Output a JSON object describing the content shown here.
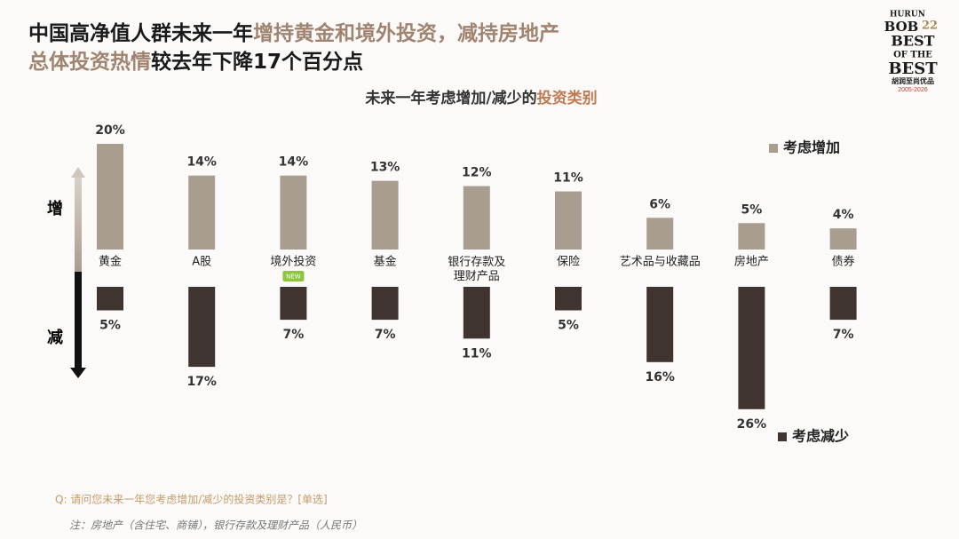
{
  "header": {
    "title_lines": [
      [
        {
          "text": "中国高净值人群未来一年",
          "color": "#1a1a1a"
        },
        {
          "text": "增持黄金和境外投资，减持房地产",
          "color": "#a08470"
        }
      ],
      [
        {
          "text": "总体投资热情",
          "color": "#a08470"
        },
        {
          "text": "较去年下降17个百分点",
          "color": "#1a1a1a"
        }
      ]
    ],
    "logo": {
      "brand": "HURUN",
      "event": "BOB",
      "edition": "22",
      "lines": [
        "BEST",
        "OF THE",
        "BEST"
      ],
      "name": "胡润至尚优品",
      "years": "2005-2026"
    }
  },
  "chart_data": {
    "type": "bar",
    "title": [
      {
        "text": "未来一年考虑增加/减少的",
        "color": "#333333"
      },
      {
        "text": "投资类别",
        "color": "#c07a52"
      }
    ],
    "axis_labels": {
      "increase": "增",
      "decrease": "减"
    },
    "categories": [
      "黄金",
      "A股",
      "境外投资",
      "基金",
      "银行存款及理财产品",
      "保险",
      "艺术品与收藏品",
      "房地产",
      "债券"
    ],
    "series": [
      {
        "name": "考虑增加",
        "color": "#a99d90",
        "values": [
          20,
          14,
          14,
          13,
          12,
          11,
          6,
          5,
          4
        ],
        "value_labels": [
          "20%",
          "14%",
          "14%",
          "13%",
          "12%",
          "11%",
          "6%",
          "5%",
          "4%"
        ]
      },
      {
        "name": "考虑减少",
        "color": "#3f3430",
        "values": [
          5,
          17,
          7,
          7,
          11,
          5,
          16,
          26,
          7
        ],
        "value_labels": [
          "5%",
          "17%",
          "7%",
          "7%",
          "11%",
          "5%",
          "16%",
          "26%",
          "7%"
        ]
      }
    ],
    "annotations": [
      {
        "category": "境外投资",
        "text": "NEW"
      }
    ],
    "notes": [
      "Q: 请问您未来一年您考虑增加/减少的投资类别是？[单选]",
      "注：房地产（含住宅、商铺），银行存款及理财产品（人民币）"
    ]
  }
}
